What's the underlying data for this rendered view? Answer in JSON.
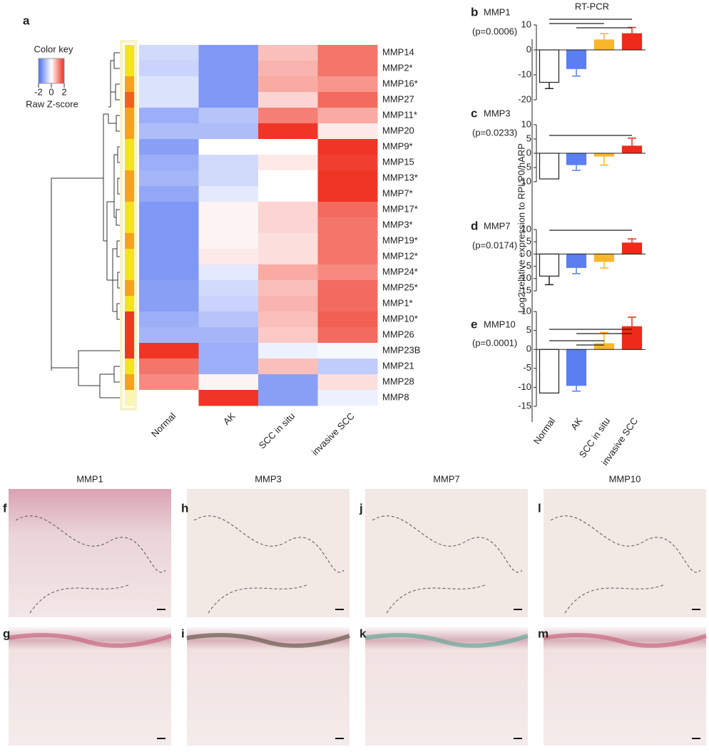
{
  "chart_data": [
    {
      "type": "heatmap",
      "panel_label": "a",
      "rows": [
        "MMP14",
        "MMP2*",
        "MMP16*",
        "MMP27",
        "MMP11*",
        "MMP20",
        "MMP9*",
        "MMP15",
        "MMP13*",
        "MMP7*",
        "MMP17*",
        "MMP3*",
        "MMP19*",
        "MMP12*",
        "MMP24*",
        "MMP25*",
        "MMP1*",
        "MMP10*",
        "MMP26",
        "MMP23B",
        "MMP21",
        "MMP28",
        "MMP8"
      ],
      "columns": [
        "Normal",
        "AK",
        "SCC in situ",
        "invasive SCC"
      ],
      "values": [
        [
          -0.5,
          -1.4,
          0.6,
          1.3
        ],
        [
          -0.6,
          -1.4,
          0.7,
          1.3
        ],
        [
          -0.4,
          -1.4,
          0.8,
          1.0
        ],
        [
          -0.4,
          -1.4,
          0.4,
          1.4
        ],
        [
          -1.1,
          -0.8,
          1.2,
          0.8
        ],
        [
          -0.9,
          -0.9,
          1.9,
          0.2
        ],
        [
          -1.3,
          0.0,
          0.0,
          1.9
        ],
        [
          -1.1,
          -0.5,
          0.2,
          1.8
        ],
        [
          -1.0,
          -0.5,
          0.0,
          1.9
        ],
        [
          -1.2,
          -0.3,
          0.0,
          1.9
        ],
        [
          -1.4,
          0.1,
          0.4,
          1.4
        ],
        [
          -1.4,
          0.1,
          0.4,
          1.3
        ],
        [
          -1.4,
          0.1,
          0.3,
          1.3
        ],
        [
          -1.4,
          0.2,
          0.3,
          1.3
        ],
        [
          -1.4,
          -0.3,
          0.8,
          1.1
        ],
        [
          -1.3,
          -0.5,
          0.6,
          1.4
        ],
        [
          -1.3,
          -0.6,
          0.7,
          1.4
        ],
        [
          -1.1,
          -0.8,
          0.6,
          1.5
        ],
        [
          -1.0,
          -1.0,
          0.5,
          1.4
        ],
        [
          1.9,
          -1.1,
          -0.2,
          -0.1
        ],
        [
          1.3,
          -1.1,
          0.6,
          -0.7
        ],
        [
          1.1,
          0.1,
          -1.3,
          0.3
        ],
        [
          0.0,
          1.9,
          -1.3,
          -0.2
        ]
      ],
      "row_colors": [
        "#f5e41a",
        "#f5e41a",
        "#f7a21b",
        "#f2601c",
        "#f7a21b",
        "#f7a21b",
        "#f5e41a",
        "#f5e41a",
        "#f7a21b",
        "#f7a21b",
        "#f5e41a",
        "#f5e41a",
        "#f7a21b",
        "#f5e41a",
        "#f5e41a",
        "#f7a21b",
        "#f5e41a",
        "#ee3a1c",
        "#ee3a1c",
        "#ee3a1c",
        "#f5e41a",
        "#f7a21b",
        "#f8f6b0"
      ],
      "color_key": {
        "title": "Color key",
        "label": "Raw Z-score",
        "lim": [
          -2,
          2
        ],
        "ticks": [
          -2,
          0,
          2
        ]
      }
    },
    {
      "type": "bar",
      "panel_label": "b",
      "gene": "MMP1",
      "p_value": "(p=0.0006)",
      "values": [
        -13,
        -7.5,
        4,
        6.5
      ],
      "errors": [
        2.5,
        3,
        2.5,
        2.5
      ],
      "ylim": [
        -20,
        10
      ],
      "yticks": [
        10,
        0,
        -10,
        -20
      ]
    },
    {
      "type": "bar",
      "panel_label": "c",
      "gene": "MMP3",
      "p_value": "(p=0.0233)",
      "values": [
        -9,
        -4,
        -1,
        2.5
      ],
      "errors": [
        null,
        2,
        3.2,
        2.8
      ],
      "ylim": [
        -10,
        10
      ],
      "yticks": [
        10,
        5,
        0,
        -5,
        -10
      ]
    },
    {
      "type": "bar",
      "panel_label": "d",
      "gene": "MMP7",
      "p_value": "(p=0.0174)",
      "values": [
        -9,
        -5.5,
        -3,
        4.5
      ],
      "errors": [
        3.5,
        2.5,
        2.7,
        1.7
      ],
      "ylim": [
        -15,
        10
      ],
      "yticks": [
        10,
        5,
        0,
        -5,
        -10,
        -15
      ]
    },
    {
      "type": "bar",
      "panel_label": "e",
      "gene": "MMP10",
      "p_value": "(p=0.0001)",
      "values": [
        -11.5,
        -9.5,
        1.5,
        6
      ],
      "errors": [
        null,
        1.5,
        3,
        2.5
      ],
      "ylim": [
        -15,
        10
      ],
      "yticks": [
        10,
        5,
        0,
        -5,
        -10,
        -15
      ]
    }
  ],
  "bar_group": {
    "title": "RT-PCR",
    "y_label": "Log2 relative expression to RPLP0/hARP",
    "categories": [
      "Normal",
      "AK",
      "SCC in situ",
      "invasive SCC"
    ],
    "colors": [
      "#ffffff",
      "#5b7ff0",
      "#f8b62a",
      "#ee2a1a"
    ]
  },
  "histology": {
    "columns": [
      {
        "title": "MMP1",
        "top": "f",
        "bottom": "g"
      },
      {
        "title": "MMP3",
        "top": "h",
        "bottom": "i"
      },
      {
        "title": "MMP7",
        "top": "j",
        "bottom": "k"
      },
      {
        "title": "MMP10",
        "top": "l",
        "bottom": "m"
      }
    ]
  }
}
